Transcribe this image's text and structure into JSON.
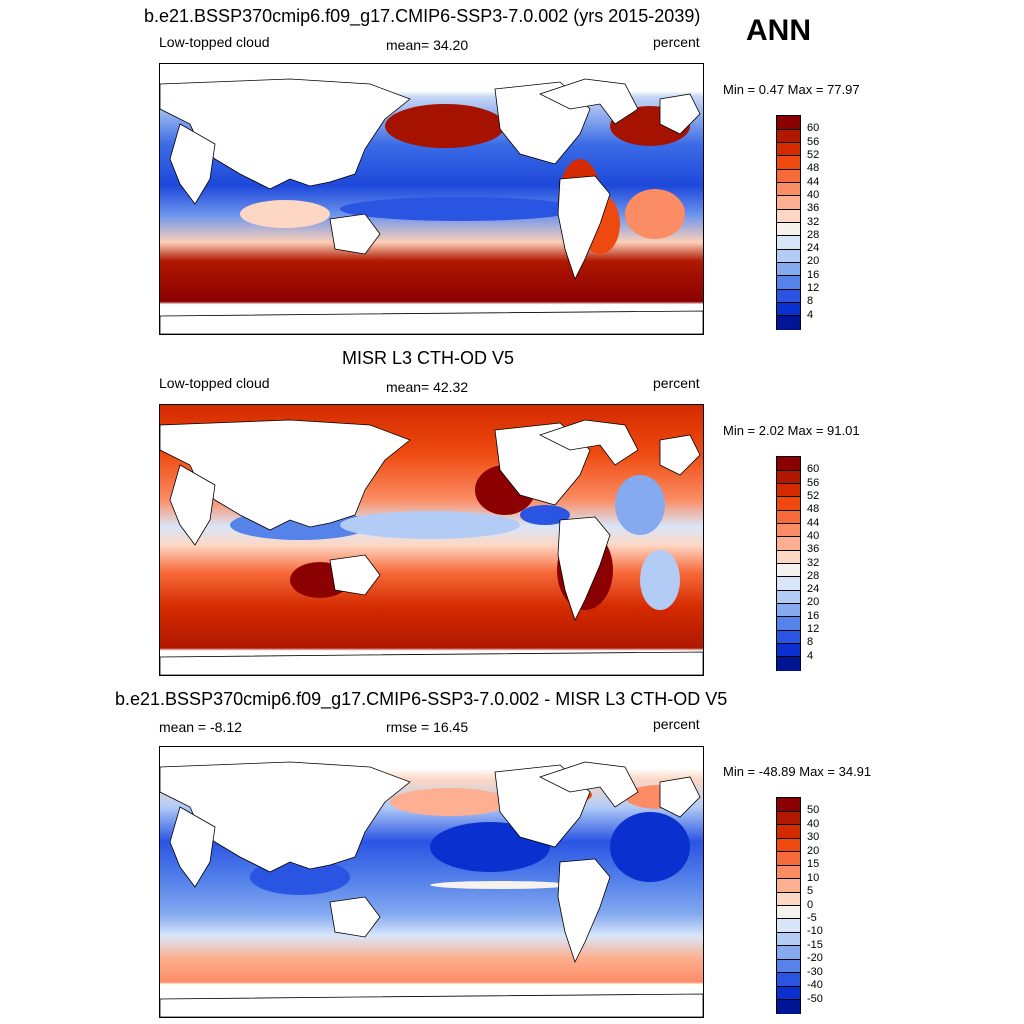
{
  "season": "ANN",
  "panels": [
    {
      "title": "b.e21.BSSP370cmip6.f09_g17.CMIP6-SSP3-7.0.002 (yrs 2015-2039)",
      "left_label": "Low-topped cloud",
      "center_label": "mean=  34.20",
      "right_label": "percent",
      "minmax": "Min =   0.47 Max =  77.97",
      "colorbar": {
        "labels": [
          "60",
          "56",
          "52",
          "48",
          "44",
          "40",
          "36",
          "32",
          "28",
          "24",
          "20",
          "16",
          "12",
          "8",
          "4"
        ],
        "colors": [
          "#8b0000",
          "#b01800",
          "#d42a00",
          "#ee4a10",
          "#f76a3a",
          "#fb8c64",
          "#fcb091",
          "#fdd7c3",
          "#f6f2ee",
          "#d9e6f9",
          "#b3ccf6",
          "#85aaf0",
          "#5683ea",
          "#2a55e3",
          "#0a30d0",
          "#001596"
        ]
      }
    },
    {
      "title": "MISR L3 CTH-OD V5",
      "left_label": "Low-topped cloud",
      "center_label": "mean=  42.32",
      "right_label": "percent",
      "minmax": "Min =   2.02 Max =  91.01",
      "colorbar": {
        "labels": [
          "60",
          "56",
          "52",
          "48",
          "44",
          "40",
          "36",
          "32",
          "28",
          "24",
          "20",
          "16",
          "12",
          "8",
          "4"
        ],
        "colors": [
          "#8b0000",
          "#b01800",
          "#d42a00",
          "#ee4a10",
          "#f76a3a",
          "#fb8c64",
          "#fcb091",
          "#fdd7c3",
          "#f6f2ee",
          "#d9e6f9",
          "#b3ccf6",
          "#85aaf0",
          "#5683ea",
          "#2a55e3",
          "#0a30d0",
          "#001596"
        ]
      }
    },
    {
      "title": "b.e21.BSSP370cmip6.f09_g17.CMIP6-SSP3-7.0.002 - MISR L3 CTH-OD V5",
      "left_label": "mean =  -8.12",
      "center_label": "rmse =  16.45",
      "right_label": "percent",
      "minmax": "Min = -48.89 Max =  34.91",
      "colorbar": {
        "labels": [
          "50",
          "40",
          "30",
          "20",
          "15",
          "10",
          "5",
          "0",
          "-5",
          "-10",
          "-15",
          "-20",
          "-30",
          "-40",
          "-50"
        ],
        "colors": [
          "#8b0000",
          "#b01800",
          "#d42a00",
          "#ee4a10",
          "#f76a3a",
          "#fb8c64",
          "#fcb091",
          "#fdd7c3",
          "#f6f2ee",
          "#d9e6f9",
          "#b3ccf6",
          "#85aaf0",
          "#5683ea",
          "#2a55e3",
          "#0a30d0",
          "#001596"
        ]
      }
    }
  ]
}
